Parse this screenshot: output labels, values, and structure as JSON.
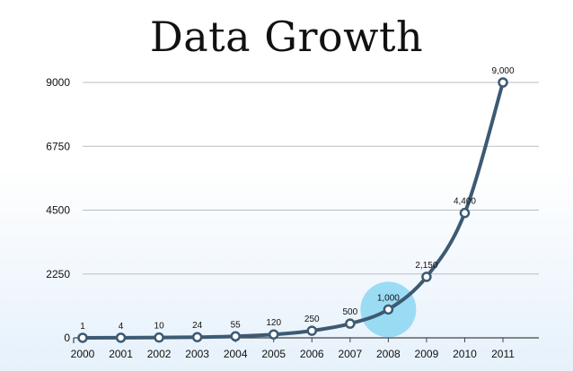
{
  "chart_data": {
    "type": "line",
    "title": "Data Growth",
    "xlabel": "",
    "ylabel": "",
    "categories": [
      "2000",
      "2001",
      "2002",
      "2003",
      "2004",
      "2005",
      "2006",
      "2007",
      "2008",
      "2009",
      "2010",
      "2011"
    ],
    "values": [
      1,
      4,
      10,
      24,
      55,
      120,
      250,
      500,
      1000,
      2150,
      4400,
      9000
    ],
    "data_labels": [
      "1",
      "4",
      "10",
      "24",
      "55",
      "120",
      "250",
      "500",
      "1,000",
      "2,150",
      "4,400",
      "9,000"
    ],
    "ylim": [
      0,
      9000
    ],
    "yticks": [
      0,
      2250,
      4500,
      6750,
      9000
    ],
    "ytick_labels": [
      "0",
      "2250",
      "4500",
      "6750",
      "9000"
    ],
    "grid": true,
    "highlight_category": "2008",
    "colors": {
      "line": "#3d5a73",
      "marker_fill": "#ffffff",
      "highlight": "#7fd3f2",
      "grid": "#b7bdc3",
      "axis": "#444444",
      "text": "#111111"
    }
  }
}
